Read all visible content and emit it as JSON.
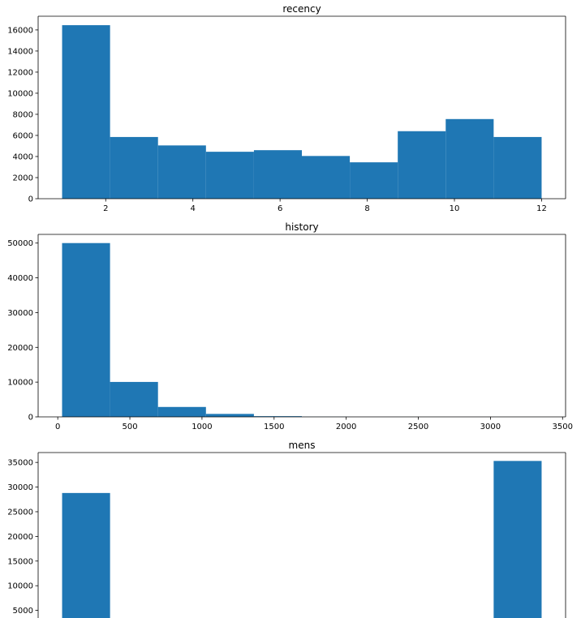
{
  "chart_data": [
    {
      "type": "bar",
      "title": "recency",
      "xlabel": "",
      "ylabel": "",
      "bin_edges": [
        1.0,
        2.1,
        3.2,
        4.3,
        5.4,
        6.5,
        7.6,
        8.7,
        9.8,
        10.9,
        12.0
      ],
      "values": [
        16450,
        5850,
        5050,
        4450,
        4600,
        4050,
        3450,
        6400,
        7550,
        5850
      ],
      "xlim": [
        0.45,
        12.55
      ],
      "ylim": [
        0,
        17300
      ],
      "xticks": [
        2,
        4,
        6,
        8,
        10,
        12
      ],
      "xtick_labels": [
        "2",
        "4",
        "6",
        "8",
        "10",
        "12"
      ],
      "yticks": [
        0,
        2000,
        4000,
        6000,
        8000,
        10000,
        12000,
        14000,
        16000
      ],
      "ytick_labels": [
        "0",
        "2000",
        "4000",
        "6000",
        "8000",
        "10000",
        "12000",
        "14000",
        "16000"
      ],
      "grid": false,
      "color": "#1f77b4"
    },
    {
      "type": "bar",
      "title": "history",
      "xlabel": "",
      "ylabel": "",
      "bin_edges": [
        29.99,
        362.5,
        695.0,
        1027.5,
        1360.0,
        1692.5,
        2025.0,
        2357.5,
        2690.0,
        3022.5,
        3355.0
      ],
      "values": [
        50000,
        10050,
        2850,
        850,
        200,
        30,
        10,
        5,
        3,
        2
      ],
      "xlim": [
        -136,
        3521
      ],
      "ylim": [
        0,
        52500
      ],
      "xticks": [
        0,
        500,
        1000,
        1500,
        2000,
        2500,
        3000,
        3500
      ],
      "xtick_labels": [
        "0",
        "500",
        "1000",
        "1500",
        "2000",
        "2500",
        "3000",
        "3500"
      ],
      "yticks": [
        0,
        10000,
        20000,
        30000,
        40000,
        50000
      ],
      "ytick_labels": [
        "0",
        "10000",
        "20000",
        "30000",
        "40000",
        "50000"
      ],
      "grid": false,
      "color": "#1f77b4"
    },
    {
      "type": "bar",
      "title": "mens",
      "xlabel": "",
      "ylabel": "",
      "bin_edges": [
        0.0,
        0.1,
        0.2,
        0.3,
        0.4,
        0.5,
        0.6,
        0.7,
        0.8,
        0.9,
        1.0
      ],
      "values": [
        28800,
        0,
        0,
        0,
        0,
        0,
        0,
        0,
        0,
        35300
      ],
      "xlim": [
        -0.05,
        1.05
      ],
      "ylim": [
        0,
        37000
      ],
      "xticks": [],
      "xtick_labels": [],
      "yticks": [
        5000,
        10000,
        15000,
        20000,
        25000,
        30000,
        35000
      ],
      "ytick_labels": [
        "5000",
        "10000",
        "15000",
        "20000",
        "25000",
        "30000",
        "35000"
      ],
      "grid": false,
      "color": "#1f77b4"
    }
  ]
}
